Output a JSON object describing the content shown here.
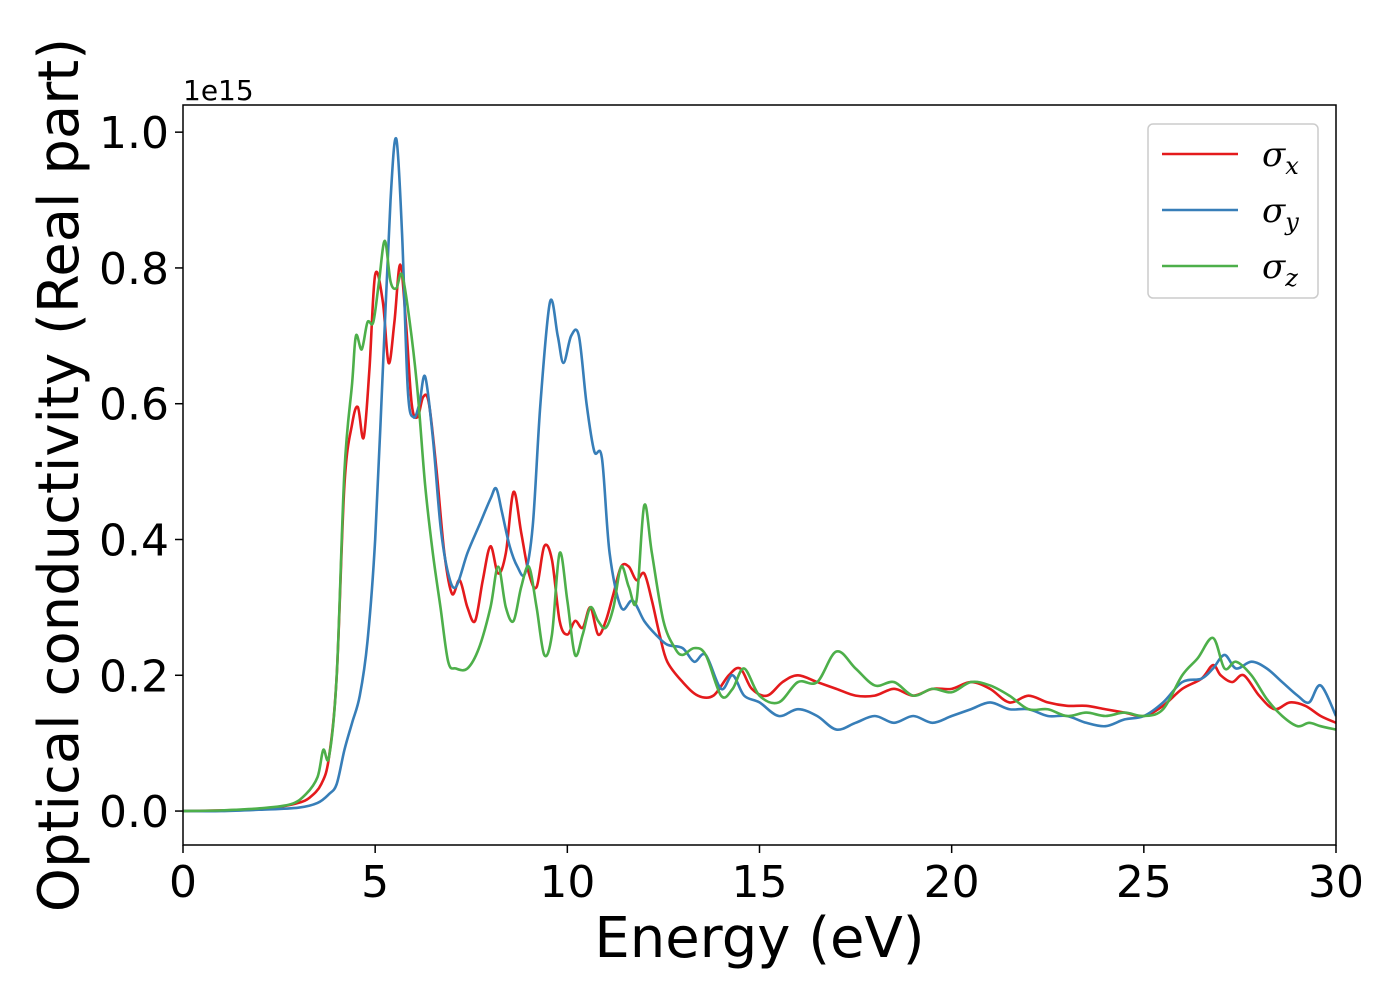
{
  "chart_data": {
    "type": "line",
    "xlabel": "Energy (eV)",
    "ylabel": "Optical conductivity (Real part)",
    "y_offset_label": "1e15",
    "xlim": [
      0,
      30
    ],
    "ylim": [
      -0.05,
      1.04
    ],
    "xticks": [
      "0",
      "5",
      "10",
      "15",
      "20",
      "25",
      "30"
    ],
    "yticks": [
      "0.0",
      "0.2",
      "0.4",
      "0.6",
      "0.8",
      "1.0"
    ],
    "grid": false,
    "legend_position": "top-right",
    "series": [
      {
        "name": "σx",
        "symbol": "σ",
        "subscript": "x",
        "color": "#e41a1c",
        "x": [
          0,
          1,
          2,
          2.5,
          3,
          3.3,
          3.6,
          3.8,
          4.0,
          4.2,
          4.4,
          4.55,
          4.7,
          4.85,
          5.0,
          5.2,
          5.35,
          5.5,
          5.65,
          5.8,
          5.95,
          6.1,
          6.25,
          6.4,
          6.6,
          6.8,
          7.0,
          7.2,
          7.4,
          7.6,
          7.8,
          8.0,
          8.2,
          8.4,
          8.6,
          8.8,
          9.0,
          9.2,
          9.4,
          9.6,
          9.8,
          10.0,
          10.2,
          10.4,
          10.6,
          10.8,
          11.0,
          11.2,
          11.4,
          11.6,
          11.8,
          12.0,
          12.2,
          12.4,
          12.6,
          13.0,
          13.4,
          13.8,
          14.2,
          14.5,
          14.8,
          15.2,
          15.6,
          16.0,
          16.5,
          17.0,
          17.5,
          18.0,
          18.5,
          19.0,
          19.5,
          20.0,
          20.5,
          21.0,
          21.5,
          22.0,
          22.5,
          23.0,
          23.5,
          24.0,
          24.5,
          25.0,
          25.5,
          26.0,
          26.5,
          26.8,
          27.0,
          27.3,
          27.6,
          28.0,
          28.4,
          28.8,
          29.2,
          29.6,
          30.0
        ],
        "y": [
          0.0,
          0.001,
          0.003,
          0.006,
          0.012,
          0.02,
          0.04,
          0.08,
          0.2,
          0.48,
          0.57,
          0.595,
          0.55,
          0.65,
          0.79,
          0.75,
          0.66,
          0.72,
          0.805,
          0.72,
          0.6,
          0.58,
          0.61,
          0.6,
          0.5,
          0.38,
          0.32,
          0.34,
          0.3,
          0.28,
          0.34,
          0.39,
          0.35,
          0.38,
          0.47,
          0.41,
          0.35,
          0.33,
          0.39,
          0.37,
          0.28,
          0.26,
          0.28,
          0.27,
          0.3,
          0.26,
          0.28,
          0.32,
          0.36,
          0.36,
          0.34,
          0.35,
          0.31,
          0.26,
          0.22,
          0.19,
          0.17,
          0.17,
          0.2,
          0.21,
          0.18,
          0.17,
          0.19,
          0.2,
          0.19,
          0.18,
          0.17,
          0.17,
          0.18,
          0.17,
          0.18,
          0.18,
          0.19,
          0.18,
          0.16,
          0.17,
          0.16,
          0.155,
          0.155,
          0.15,
          0.145,
          0.14,
          0.155,
          0.18,
          0.195,
          0.215,
          0.2,
          0.19,
          0.2,
          0.17,
          0.15,
          0.16,
          0.155,
          0.14,
          0.13
        ]
      },
      {
        "name": "σy",
        "symbol": "σ",
        "subscript": "y",
        "color": "#377eb8",
        "x": [
          0,
          1,
          2,
          3,
          3.5,
          3.8,
          4.0,
          4.2,
          4.4,
          4.6,
          4.8,
          5.0,
          5.2,
          5.4,
          5.55,
          5.7,
          5.85,
          6.0,
          6.15,
          6.3,
          6.5,
          6.7,
          6.9,
          7.1,
          7.4,
          7.7,
          8.0,
          8.15,
          8.3,
          8.5,
          8.7,
          8.9,
          9.1,
          9.3,
          9.55,
          9.75,
          9.9,
          10.1,
          10.3,
          10.5,
          10.7,
          10.9,
          11.1,
          11.4,
          11.7,
          12.0,
          12.3,
          12.6,
          13.0,
          13.3,
          13.6,
          14.0,
          14.3,
          14.6,
          15.0,
          15.5,
          16.0,
          16.5,
          17.0,
          17.5,
          18.0,
          18.5,
          19.0,
          19.5,
          20.0,
          20.5,
          21.0,
          21.5,
          22.0,
          22.5,
          23.0,
          23.5,
          24.0,
          24.5,
          25.0,
          25.5,
          26.0,
          26.5,
          26.8,
          27.1,
          27.4,
          27.8,
          28.2,
          28.6,
          29.0,
          29.3,
          29.6,
          30.0
        ],
        "y": [
          0.0,
          0.0,
          0.002,
          0.005,
          0.012,
          0.025,
          0.04,
          0.09,
          0.13,
          0.17,
          0.25,
          0.4,
          0.65,
          0.9,
          0.99,
          0.85,
          0.62,
          0.58,
          0.6,
          0.64,
          0.55,
          0.42,
          0.35,
          0.33,
          0.38,
          0.42,
          0.46,
          0.475,
          0.44,
          0.39,
          0.36,
          0.35,
          0.42,
          0.6,
          0.75,
          0.7,
          0.66,
          0.7,
          0.7,
          0.6,
          0.53,
          0.52,
          0.38,
          0.3,
          0.31,
          0.28,
          0.26,
          0.245,
          0.24,
          0.22,
          0.23,
          0.18,
          0.2,
          0.17,
          0.16,
          0.14,
          0.15,
          0.14,
          0.12,
          0.13,
          0.14,
          0.13,
          0.14,
          0.13,
          0.14,
          0.15,
          0.16,
          0.15,
          0.15,
          0.14,
          0.14,
          0.13,
          0.125,
          0.135,
          0.14,
          0.16,
          0.19,
          0.195,
          0.21,
          0.23,
          0.21,
          0.22,
          0.21,
          0.19,
          0.17,
          0.16,
          0.185,
          0.14
        ]
      },
      {
        "name": "σz",
        "symbol": "σ",
        "subscript": "z",
        "color": "#4daf4a",
        "x": [
          0,
          1,
          2,
          2.8,
          3.2,
          3.5,
          3.65,
          3.8,
          4.0,
          4.2,
          4.4,
          4.5,
          4.65,
          4.8,
          4.95,
          5.1,
          5.25,
          5.4,
          5.55,
          5.7,
          5.9,
          6.1,
          6.3,
          6.5,
          6.7,
          6.9,
          7.1,
          7.4,
          7.7,
          8.0,
          8.2,
          8.4,
          8.6,
          8.8,
          9.0,
          9.2,
          9.4,
          9.6,
          9.8,
          10.0,
          10.2,
          10.4,
          10.6,
          10.8,
          11.0,
          11.2,
          11.4,
          11.6,
          11.8,
          12.0,
          12.2,
          12.5,
          12.8,
          13.0,
          13.3,
          13.6,
          14.0,
          14.3,
          14.6,
          15.0,
          15.5,
          16.0,
          16.5,
          17.0,
          17.5,
          18.0,
          18.5,
          19.0,
          19.5,
          20.0,
          20.5,
          21.0,
          21.5,
          22.0,
          22.5,
          23.0,
          23.5,
          24.0,
          24.5,
          25.0,
          25.5,
          26.0,
          26.4,
          26.8,
          27.1,
          27.4,
          27.8,
          28.2,
          28.6,
          29.0,
          29.3,
          29.6,
          30.0
        ],
        "y": [
          0.0,
          0.001,
          0.004,
          0.01,
          0.025,
          0.05,
          0.09,
          0.08,
          0.2,
          0.5,
          0.63,
          0.7,
          0.68,
          0.72,
          0.72,
          0.78,
          0.84,
          0.78,
          0.77,
          0.79,
          0.72,
          0.62,
          0.48,
          0.38,
          0.3,
          0.22,
          0.21,
          0.21,
          0.24,
          0.3,
          0.36,
          0.3,
          0.28,
          0.33,
          0.36,
          0.3,
          0.23,
          0.26,
          0.38,
          0.31,
          0.23,
          0.26,
          0.3,
          0.28,
          0.27,
          0.3,
          0.36,
          0.33,
          0.31,
          0.45,
          0.38,
          0.28,
          0.24,
          0.23,
          0.24,
          0.23,
          0.17,
          0.18,
          0.21,
          0.17,
          0.16,
          0.19,
          0.19,
          0.235,
          0.21,
          0.185,
          0.19,
          0.17,
          0.18,
          0.175,
          0.19,
          0.185,
          0.17,
          0.15,
          0.15,
          0.14,
          0.145,
          0.14,
          0.145,
          0.14,
          0.15,
          0.2,
          0.225,
          0.255,
          0.21,
          0.22,
          0.2,
          0.165,
          0.14,
          0.125,
          0.13,
          0.125,
          0.12
        ]
      }
    ]
  }
}
